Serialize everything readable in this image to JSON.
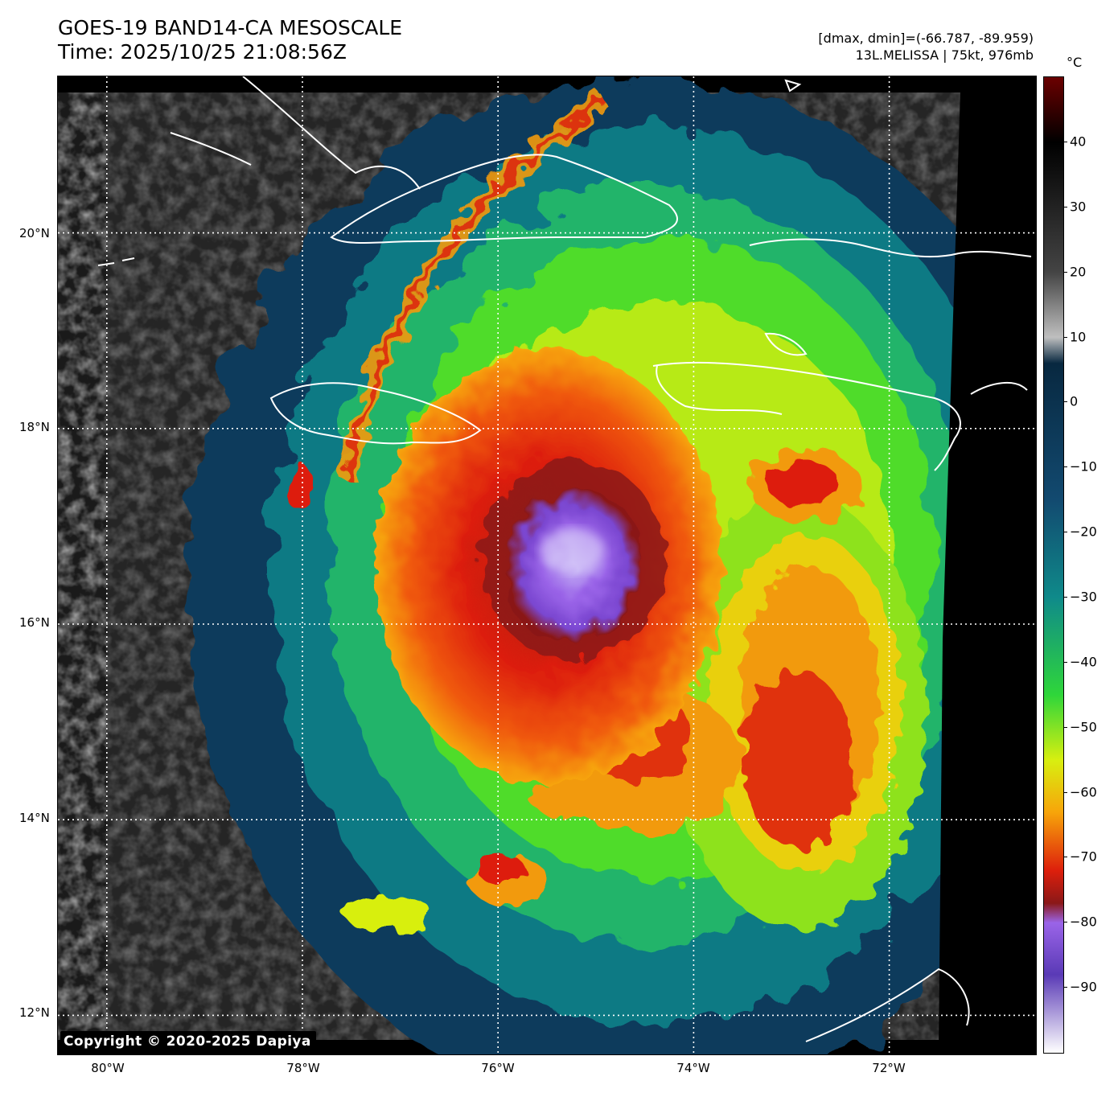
{
  "header": {
    "title_line1": "GOES-19 BAND14-CA MESOSCALE",
    "title_line2": "Time: 2025/10/25 21:08:56Z",
    "range_text": "[dmax, dmin]=(-66.787, -89.959)",
    "storm_text": "13L.MELISSA | 75kt, 976mb"
  },
  "map": {
    "copyright": "Copyright © 2020-2025 Dapiya",
    "lat_labels": [
      "20°N",
      "18°N",
      "16°N",
      "14°N",
      "12°N"
    ],
    "lon_labels": [
      "80°W",
      "78°W",
      "76°W",
      "74°W",
      "72°W"
    ],
    "lat_values": [
      20,
      18,
      16,
      14,
      12
    ],
    "lon_values": [
      -80,
      -78,
      -76,
      -74,
      -72
    ],
    "lat_range": [
      11.6,
      21.6
    ],
    "lon_range": [
      -80.5,
      -70.5
    ],
    "gridlines": true,
    "storm_center": {
      "lat": 16.8,
      "lon": -75.2
    }
  },
  "colorbar": {
    "unit": "°C",
    "tick_labels": [
      "40",
      "30",
      "20",
      "10",
      "0",
      "−10",
      "−20",
      "−30",
      "−40",
      "−50",
      "−60",
      "−70",
      "−80",
      "−90"
    ],
    "tick_values": [
      40,
      30,
      20,
      10,
      0,
      -10,
      -20,
      -30,
      -40,
      -50,
      -60,
      -70,
      -80,
      -90
    ],
    "range": [
      -100,
      50
    ],
    "stops": [
      {
        "v": 50,
        "color": "#6b0000"
      },
      {
        "v": 40,
        "color": "#000000"
      },
      {
        "v": 20,
        "color": "#444444"
      },
      {
        "v": 10,
        "color": "#bfbfbf"
      },
      {
        "v": 6,
        "color": "#082840"
      },
      {
        "v": -15,
        "color": "#124a70"
      },
      {
        "v": -30,
        "color": "#0f8a8a"
      },
      {
        "v": -45,
        "color": "#2fd63a"
      },
      {
        "v": -55,
        "color": "#d8ef10"
      },
      {
        "v": -63,
        "color": "#f7a50a"
      },
      {
        "v": -72,
        "color": "#dd1f0c"
      },
      {
        "v": -77,
        "color": "#8a1818"
      },
      {
        "v": -80,
        "color": "#9a64e8"
      },
      {
        "v": -88,
        "color": "#5a3ab6"
      },
      {
        "v": -100,
        "color": "#ffffff"
      }
    ]
  }
}
